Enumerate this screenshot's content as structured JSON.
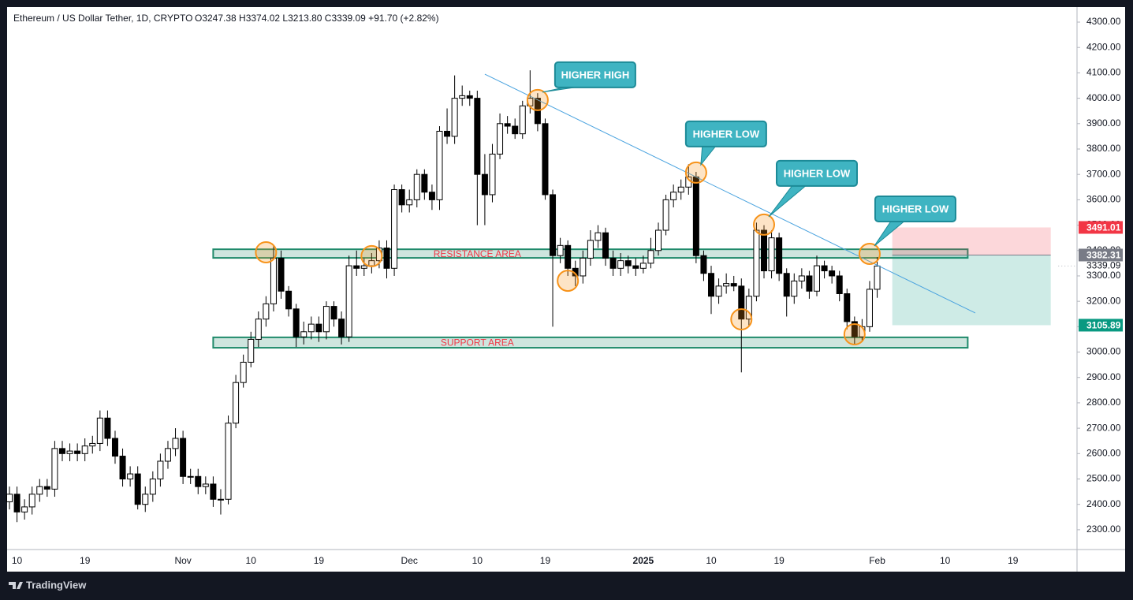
{
  "chart_data": {
    "type": "candlestick",
    "title": "Ethereum / US Dollar Tether, 1D, CRYPTO",
    "ohlc_text": "O3247.38 H3374.02 L3213.80 C3339.09 +91.70 (+2.82%)",
    "brand": "TradingView",
    "categories": [
      null,
      "10",
      null,
      null,
      null,
      null,
      null,
      null,
      null,
      null,
      "19",
      null,
      null,
      null,
      null,
      null,
      null,
      null,
      null,
      null,
      null,
      null,
      null,
      "Nov",
      null,
      null,
      null,
      null,
      null,
      null,
      null,
      null,
      "10",
      null,
      null,
      null,
      null,
      null,
      null,
      null,
      null,
      "19",
      null,
      null,
      null,
      null,
      null,
      null,
      null,
      null,
      null,
      null,
      null,
      "Dec",
      null,
      null,
      null,
      null,
      null,
      null,
      null,
      null,
      "10",
      null,
      null,
      null,
      null,
      null,
      null,
      null,
      null,
      "19",
      null,
      null,
      null,
      null,
      null,
      null,
      null,
      null,
      null,
      null,
      null,
      null,
      "2025",
      null,
      null,
      null,
      null,
      null,
      null,
      null,
      null,
      "10",
      null,
      null,
      null,
      null,
      null,
      null,
      null,
      null,
      "19",
      null,
      null,
      null,
      null,
      null,
      null,
      null,
      null,
      null,
      null,
      null,
      null,
      "Feb",
      null,
      null,
      null,
      null,
      null,
      null,
      null,
      null,
      "10",
      null,
      null,
      null,
      null,
      null,
      null,
      null,
      null,
      "19",
      null,
      null,
      null,
      null,
      null,
      null
    ],
    "open": [
      2410,
      2440,
      2370,
      2390,
      2440,
      2470,
      2460,
      2620,
      2600,
      2610,
      2600,
      2630,
      2640,
      2740,
      2660,
      2590,
      2500,
      2520,
      2400,
      2440,
      2500,
      2570,
      2620,
      2660,
      2510,
      2510,
      2470,
      2480,
      2420,
      2420,
      2720,
      2880,
      2960,
      3050,
      3130,
      3190,
      3370,
      3240,
      3170,
      3060,
      3080,
      3110,
      3080,
      3180,
      3130,
      3060,
      3340,
      3330,
      3340,
      3360,
      3410,
      3330,
      3640,
      3580,
      3600,
      3700,
      3630,
      3600,
      3870,
      3850,
      4000,
      4010,
      4000,
      3700,
      3620,
      3780,
      3900,
      3890,
      3860,
      3970,
      4000,
      3900,
      3620,
      3380,
      3420,
      3330,
      3300,
      3370,
      3440,
      3470,
      3370,
      3330,
      3360,
      3340,
      3330,
      3350,
      3400,
      3480,
      3600,
      3630,
      3650,
      3690,
      3380,
      3310,
      3220,
      3260,
      3270,
      3260,
      3130,
      3220,
      3480,
      3320,
      3450,
      3310,
      3220,
      3280,
      3300,
      3240,
      3340,
      3320,
      3300,
      3230,
      3120,
      3060,
      3100,
      3247.38,
      null,
      null,
      null,
      null,
      null,
      null,
      null,
      null,
      null,
      null,
      null,
      null,
      null,
      null,
      null,
      null,
      null,
      null,
      null,
      null,
      null,
      null,
      null,
      null
    ],
    "high": [
      2470,
      2470,
      2420,
      2470,
      2500,
      2500,
      2650,
      2650,
      2640,
      2640,
      2660,
      2670,
      2770,
      2770,
      2690,
      2620,
      2550,
      2550,
      2470,
      2530,
      2600,
      2650,
      2700,
      2690,
      2540,
      2540,
      2510,
      2510,
      2460,
      2750,
      2910,
      2990,
      3080,
      3160,
      3220,
      3420,
      3400,
      3260,
      3190,
      3120,
      3140,
      3140,
      3200,
      3200,
      3160,
      3380,
      3400,
      3370,
      3390,
      3440,
      3440,
      3660,
      3660,
      3640,
      3720,
      3720,
      3660,
      3890,
      3960,
      4090,
      4050,
      4030,
      4030,
      3780,
      3820,
      3940,
      3930,
      3920,
      3990,
      4110,
      4020,
      3920,
      3640,
      3450,
      3440,
      3360,
      3400,
      3480,
      3500,
      3490,
      3400,
      3390,
      3380,
      3370,
      3380,
      3450,
      3510,
      3620,
      3660,
      3680,
      3740,
      3710,
      3400,
      3340,
      3290,
      3310,
      3300,
      3290,
      3250,
      3510,
      3500,
      3480,
      3470,
      3330,
      3310,
      3330,
      3320,
      3380,
      3360,
      3340,
      3320,
      3250,
      3140,
      3130,
      3280,
      3374.02,
      null,
      null,
      null,
      null,
      null,
      null,
      null,
      null,
      null,
      null,
      null,
      null,
      null,
      null,
      null,
      null,
      null,
      null,
      null,
      null,
      null,
      null,
      null,
      null
    ],
    "low": [
      2380,
      2330,
      2340,
      2360,
      2410,
      2430,
      2430,
      2570,
      2570,
      2570,
      2570,
      2600,
      2610,
      2630,
      2560,
      2470,
      2470,
      2380,
      2370,
      2410,
      2470,
      2540,
      2590,
      2480,
      2480,
      2440,
      2440,
      2390,
      2360,
      2400,
      2700,
      2860,
      2940,
      3020,
      3100,
      3160,
      3210,
      3140,
      3020,
      3030,
      3050,
      3040,
      3050,
      3100,
      3030,
      3040,
      3300,
      3300,
      3310,
      3330,
      3290,
      3300,
      3550,
      3550,
      3570,
      3600,
      3560,
      3560,
      3820,
      3820,
      3970,
      3970,
      3500,
      3500,
      3590,
      3760,
      3860,
      3840,
      3840,
      3940,
      3870,
      3600,
      3100,
      3350,
      3300,
      3260,
      3270,
      3340,
      3410,
      3340,
      3300,
      3300,
      3310,
      3300,
      3310,
      3330,
      3380,
      3460,
      3570,
      3600,
      3620,
      3350,
      3280,
      3150,
      3190,
      3230,
      3240,
      2920,
      3100,
      3200,
      3290,
      3290,
      3280,
      3140,
      3190,
      3250,
      3210,
      3220,
      3290,
      3270,
      3200,
      3090,
      3030,
      3040,
      3080,
      3213.8,
      null,
      null,
      null,
      null,
      null,
      null,
      null,
      null,
      null,
      null,
      null,
      null,
      null,
      null,
      null,
      null,
      null,
      null,
      null,
      null,
      null,
      null,
      null,
      null
    ],
    "close": [
      2440,
      2370,
      2390,
      2440,
      2470,
      2460,
      2620,
      2600,
      2610,
      2600,
      2630,
      2640,
      2740,
      2660,
      2590,
      2500,
      2520,
      2400,
      2440,
      2500,
      2570,
      2620,
      2660,
      2510,
      2510,
      2470,
      2480,
      2420,
      2420,
      2720,
      2880,
      2960,
      3050,
      3130,
      3190,
      3370,
      3240,
      3170,
      3060,
      3080,
      3110,
      3080,
      3180,
      3130,
      3060,
      3340,
      3330,
      3340,
      3360,
      3410,
      3330,
      3640,
      3580,
      3600,
      3700,
      3630,
      3600,
      3870,
      3850,
      4000,
      4010,
      4000,
      3700,
      3620,
      3780,
      3900,
      3890,
      3860,
      3970,
      4000,
      3900,
      3620,
      3380,
      3420,
      3330,
      3300,
      3370,
      3440,
      3470,
      3370,
      3330,
      3360,
      3340,
      3330,
      3350,
      3400,
      3480,
      3600,
      3630,
      3650,
      3690,
      3380,
      3310,
      3220,
      3260,
      3270,
      3260,
      3130,
      3220,
      3480,
      3320,
      3450,
      3310,
      3220,
      3280,
      3300,
      3240,
      3340,
      3320,
      3300,
      3230,
      3120,
      3060,
      3100,
      3247.38,
      3339.09,
      null,
      null,
      null,
      null,
      null,
      null,
      null,
      null,
      null,
      null,
      null,
      null,
      null,
      null,
      null,
      null,
      null,
      null,
      null,
      null,
      null,
      null,
      null,
      null
    ],
    "up_color": "#ffffff",
    "down_color": "#000000",
    "wick_color": "#000000",
    "ylim": [
      2222,
      4356
    ],
    "yticks": [
      {
        "value": 2300,
        "label": "2300.00"
      },
      {
        "value": 2400,
        "label": "2400.00"
      },
      {
        "value": 2500,
        "label": "2500.00"
      },
      {
        "value": 2600,
        "label": "2600.00"
      },
      {
        "value": 2700,
        "label": "2700.00"
      },
      {
        "value": 2800,
        "label": "2800.00"
      },
      {
        "value": 2900,
        "label": "2900.00"
      },
      {
        "value": 3000,
        "label": "3000.00"
      },
      {
        "value": 3100,
        "label": "3100.00"
      },
      {
        "value": 3200,
        "label": "3200.00"
      },
      {
        "value": 3300,
        "label": "3300.00"
      },
      {
        "value": 3400,
        "label": "3400.00"
      },
      {
        "value": 3500,
        "label": "3500.00"
      },
      {
        "value": 3600,
        "label": "3600.00"
      },
      {
        "value": 3700,
        "label": "3700.00"
      },
      {
        "value": 3800,
        "label": "3800.00"
      },
      {
        "value": 3900,
        "label": "3900.00"
      },
      {
        "value": 4000,
        "label": "4000.00"
      },
      {
        "value": 4100,
        "label": "4100.00"
      },
      {
        "value": 4200,
        "label": "4200.00"
      },
      {
        "value": 4300,
        "label": "4300.00"
      }
    ],
    "grid": false,
    "last_price": 3339.09,
    "zones": [
      {
        "label": "RESISTANCE AREA",
        "low": 3371,
        "high": 3405,
        "from_index": 27,
        "to_index": 127
      },
      {
        "label": "SUPPORT AREA",
        "low": 3017,
        "high": 3058,
        "from_index": 27,
        "to_index": 127
      }
    ],
    "zone_color": "#1f8a6b",
    "zone_label_color": "#f23645",
    "trendline": {
      "from": [
        63,
        4095
      ],
      "to": [
        128,
        3154
      ],
      "color": "#4aa3df"
    },
    "highlights": [
      [
        34,
        3393
      ],
      [
        48,
        3378
      ],
      [
        70,
        3993
      ],
      [
        74,
        3281
      ],
      [
        91,
        3707
      ],
      [
        97,
        3129
      ],
      [
        100,
        3502
      ],
      [
        112,
        3070
      ],
      [
        114,
        3387
      ]
    ],
    "highlight_color": "#f7931a",
    "callouts": [
      {
        "text": "HIGHER HIGH",
        "index": 70,
        "value": 3993
      },
      {
        "text": "HIGHER LOW",
        "index": 91,
        "value": 3707
      },
      {
        "text": "HIGHER LOW",
        "index": 100,
        "value": 3502
      },
      {
        "text": "HIGHER LOW",
        "index": 114,
        "value": 3387
      }
    ],
    "callout_color": "#3fb4c2",
    "short_position": {
      "stop": 3491.01,
      "entry": 3382.31,
      "target": 3105.89,
      "from_index": 117,
      "to_index": 138,
      "stop_color": "#f23645",
      "entry_color": "#787b86",
      "target_color": "#089981"
    }
  }
}
